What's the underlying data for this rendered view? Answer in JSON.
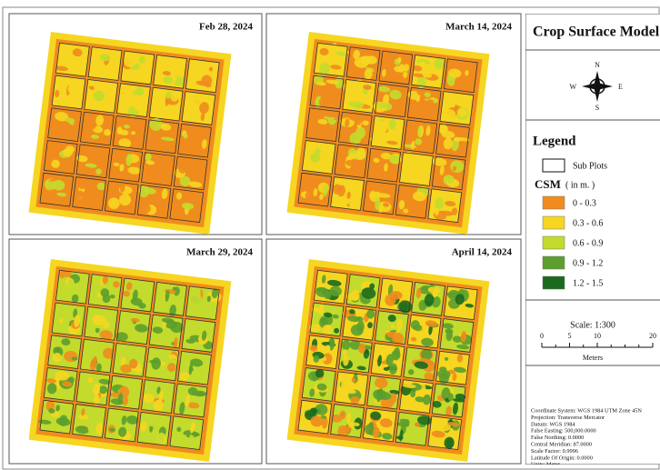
{
  "panels": [
    {
      "date": "Feb 28, 2024"
    },
    {
      "date": "March 14, 2024"
    },
    {
      "date": "March 29, 2024"
    },
    {
      "date": "April 14, 2024"
    }
  ],
  "sidebar": {
    "title": "Crop Surface Model",
    "compass": {
      "n": "N",
      "s": "S",
      "e": "E",
      "w": "W"
    },
    "legend": {
      "title": "Legend",
      "subplots": "Sub Plots",
      "csm": "CSM",
      "unit": "( in m. )",
      "classes": [
        {
          "label": "0 - 0.3",
          "color": "#f08c1e"
        },
        {
          "label": "0.3 - 0.6",
          "color": "#f6d620"
        },
        {
          "label": "0.6 - 0.9",
          "color": "#c3db2c"
        },
        {
          "label": "0.9 - 1.2",
          "color": "#5c9f2e"
        },
        {
          "label": "1.2 - 1.5",
          "color": "#1b6a1e"
        }
      ]
    },
    "scale": {
      "title": "Scale: 1:300",
      "ticks": [
        0,
        5,
        10,
        20
      ],
      "unit": "Meters"
    },
    "info": [
      "Coordinate System: WGS 1984 UTM Zone 45N",
      "Projection: Transverse Mercator",
      "Datum: WGS 1984",
      "False Easting: 500,000.0000",
      "False Northing: 0.0000",
      "Central Meridian: 87.0000",
      "Scale Factor: 0.9996",
      "Latitude Of Origin: 0.0000",
      "Units: Meter"
    ]
  }
}
